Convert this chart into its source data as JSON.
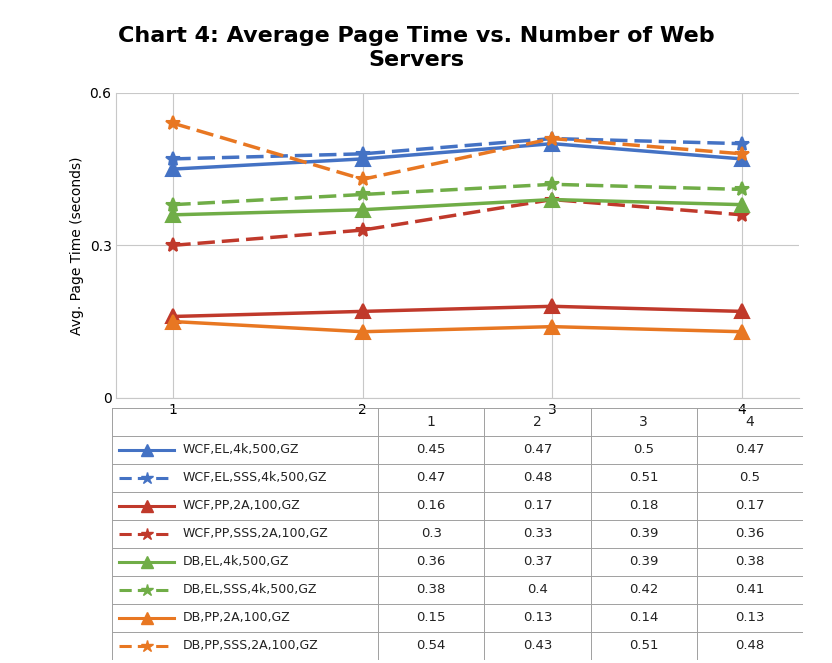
{
  "title": "Chart 4: Average Page Time vs. Number of Web\nServers",
  "ylabel": "Avg. Page Time (seconds)",
  "x": [
    1,
    2,
    3,
    4
  ],
  "ylim": [
    0,
    0.6
  ],
  "yticks": [
    0,
    0.3,
    0.6
  ],
  "series": [
    {
      "label": "WCF,EL,4k,500,GZ",
      "values": [
        0.45,
        0.47,
        0.5,
        0.47
      ],
      "color": "#4472C4",
      "linestyle": "solid",
      "marker": "^",
      "dashed": false
    },
    {
      "label": "WCF,EL,SSS,4k,500,GZ",
      "values": [
        0.47,
        0.48,
        0.51,
        0.5
      ],
      "color": "#4472C4",
      "linestyle": "dashed",
      "marker": "*",
      "dashed": true
    },
    {
      "label": "WCF,PP,2A,100,GZ",
      "values": [
        0.16,
        0.17,
        0.18,
        0.17
      ],
      "color": "#C0392B",
      "linestyle": "solid",
      "marker": "^",
      "dashed": false
    },
    {
      "label": "WCF,PP,SSS,2A,100,GZ",
      "values": [
        0.3,
        0.33,
        0.39,
        0.36
      ],
      "color": "#C0392B",
      "linestyle": "dashed",
      "marker": "*",
      "dashed": true
    },
    {
      "label": "DB,EL,4k,500,GZ",
      "values": [
        0.36,
        0.37,
        0.39,
        0.38
      ],
      "color": "#70AD47",
      "linestyle": "solid",
      "marker": "^",
      "dashed": false
    },
    {
      "label": "DB,EL,SSS,4k,500,GZ",
      "values": [
        0.38,
        0.4,
        0.42,
        0.41
      ],
      "color": "#70AD47",
      "linestyle": "dashed",
      "marker": "*",
      "dashed": true
    },
    {
      "label": "DB,PP,2A,100,GZ",
      "values": [
        0.15,
        0.13,
        0.14,
        0.13
      ],
      "color": "#E87722",
      "linestyle": "solid",
      "marker": "^",
      "dashed": false
    },
    {
      "label": "DB,PP,SSS,2A,100,GZ",
      "values": [
        0.54,
        0.43,
        0.51,
        0.48
      ],
      "color": "#E87722",
      "linestyle": "dashed",
      "marker": "*",
      "dashed": true
    }
  ],
  "table_rows": [
    [
      "WCF,EL,4k,500,GZ",
      "0.45",
      "0.47",
      "0.5",
      "0.47"
    ],
    [
      "WCF,EL,SSS,4k,500,GZ",
      "0.47",
      "0.48",
      "0.51",
      "0.5"
    ],
    [
      "WCF,PP,2A,100,GZ",
      "0.16",
      "0.17",
      "0.18",
      "0.17"
    ],
    [
      "WCF,PP,SSS,2A,100,GZ",
      "0.3",
      "0.33",
      "0.39",
      "0.36"
    ],
    [
      "DB,EL,4k,500,GZ",
      "0.36",
      "0.37",
      "0.39",
      "0.38"
    ],
    [
      "DB,EL,SSS,4k,500,GZ",
      "0.38",
      "0.4",
      "0.42",
      "0.41"
    ],
    [
      "DB,PP,2A,100,GZ",
      "0.15",
      "0.13",
      "0.14",
      "0.13"
    ],
    [
      "DB,PP,SSS,2A,100,GZ",
      "0.54",
      "0.43",
      "0.51",
      "0.48"
    ]
  ],
  "row_colors": [
    "#4472C4",
    "#4472C4",
    "#C0392B",
    "#C0392B",
    "#70AD47",
    "#70AD47",
    "#E87722",
    "#E87722"
  ],
  "background_color": "#FFFFFF",
  "grid_color": "#C8C8C8",
  "title_fontsize": 16,
  "axis_label_fontsize": 10,
  "tick_fontsize": 10,
  "table_fontsize": 9
}
